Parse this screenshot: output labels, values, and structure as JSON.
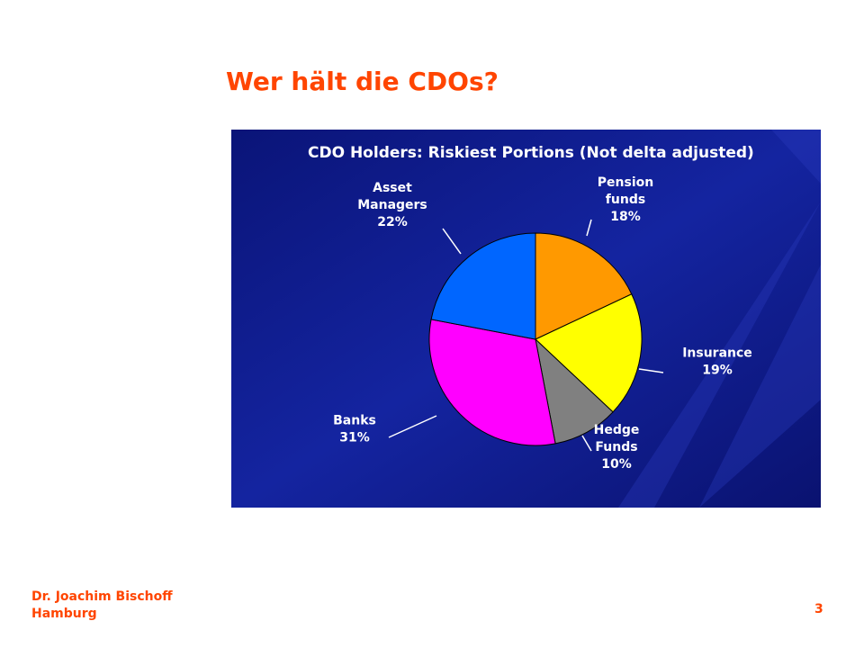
{
  "slide": {
    "title": "Wer hält die CDOs?",
    "author": "Dr. Joachim Bischoff",
    "location": "Hamburg",
    "page_number": "3"
  },
  "chart_data": {
    "type": "pie",
    "title": "CDO Holders: Riskiest Portions (Not delta adjusted)",
    "unit": "%",
    "slices": [
      {
        "name": "Pension funds",
        "label_lines": [
          "Pension",
          "funds"
        ],
        "value": 18,
        "value_label": "18%",
        "color": "#ff9900"
      },
      {
        "name": "Insurance",
        "label_lines": [
          "Insurance"
        ],
        "value": 19,
        "value_label": "19%",
        "color": "#ffff00"
      },
      {
        "name": "Hedge Funds",
        "label_lines": [
          "Hedge",
          "Funds"
        ],
        "value": 10,
        "value_label": "10%",
        "color": "#808080"
      },
      {
        "name": "Banks",
        "label_lines": [
          "Banks"
        ],
        "value": 31,
        "value_label": "31%",
        "color": "#ff00ff"
      },
      {
        "name": "Asset Managers",
        "label_lines": [
          "Asset",
          "Managers"
        ],
        "value": 22,
        "value_label": "22%",
        "color": "#0066ff"
      }
    ],
    "start_angle_deg": 0,
    "direction": "clockwise",
    "colors": {
      "background": "#0d1a8a",
      "slice_outline": "#000000",
      "leader_line": "#ffffff"
    }
  }
}
